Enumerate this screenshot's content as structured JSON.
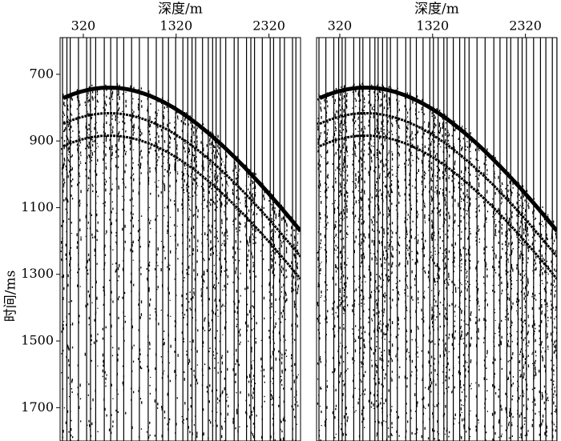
{
  "chart_data": [
    {
      "type": "seismic",
      "x_label": "深度/m",
      "y_label": "时间/ms",
      "y_inverted": true,
      "xlim": [
        70,
        2660
      ],
      "xticks": [
        320,
        1320,
        2320
      ],
      "ylim": [
        590,
        1800
      ],
      "yticks": [
        700,
        900,
        1100,
        1300,
        1500,
        1700
      ]
    },
    {
      "type": "seismic",
      "x_label": "深度/m",
      "y_inverted": true,
      "xlim": [
        70,
        2660
      ],
      "xticks": [
        320,
        1320,
        2320
      ],
      "ylim": [
        590,
        1800
      ]
    }
  ]
}
